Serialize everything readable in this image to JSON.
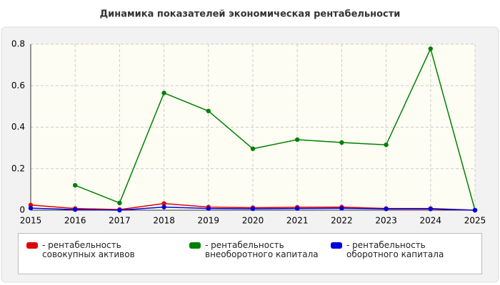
{
  "chart_data": {
    "type": "line",
    "title": "Динамика показателей экономическая рентабельности",
    "x": [
      2015,
      2016,
      2017,
      2018,
      2019,
      2020,
      2021,
      2022,
      2023,
      2024,
      2025
    ],
    "xlim": [
      2015,
      2025
    ],
    "xticks": [
      2015,
      2016,
      2017,
      2018,
      2019,
      2020,
      2021,
      2022,
      2023,
      2024,
      2025
    ],
    "ylim": [
      0,
      0.8
    ],
    "yticks": [
      0,
      0.2,
      0.4,
      0.6,
      0.8
    ],
    "grid": true,
    "legend": "bottom",
    "legend_marker": "-",
    "series": [
      {
        "name": "рентабельность совокупных активов",
        "color": "#e00000",
        "values": [
          0.025,
          0.008,
          0.003,
          0.032,
          0.015,
          0.012,
          0.014,
          0.015,
          0.008,
          0.008,
          0
        ]
      },
      {
        "name": "рентабельность внеоборотного капитала",
        "color": "#008000",
        "values": [
          null,
          0.12,
          0.035,
          0.565,
          0.478,
          0.296,
          0.34,
          0.326,
          0.315,
          0.778,
          0
        ]
      },
      {
        "name": "рентабельность оборотного капитала",
        "color": "#0000e0",
        "values": [
          0.01,
          0.003,
          0,
          0.015,
          0.008,
          0.007,
          0.008,
          0.009,
          0.006,
          0.006,
          0
        ]
      }
    ]
  }
}
